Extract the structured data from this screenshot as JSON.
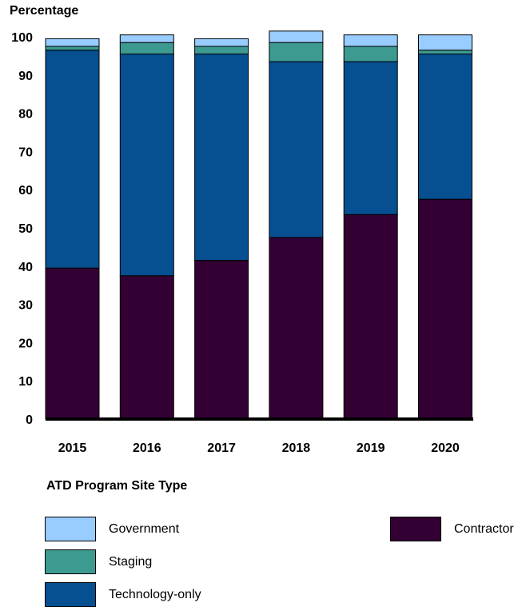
{
  "chart_data": {
    "type": "bar",
    "stacked": true,
    "ylabel": "Percentage",
    "ylim": [
      0,
      100
    ],
    "yticks": [
      0,
      10,
      20,
      30,
      40,
      50,
      60,
      70,
      80,
      90,
      100
    ],
    "categories": [
      "2015",
      "2016",
      "2017",
      "2018",
      "2019",
      "2020"
    ],
    "legend_title": "ATD Program Site Type",
    "legend_placement": "bottom",
    "grid": false,
    "series": [
      {
        "name": "Contractor",
        "color": "#330033",
        "values": [
          39.5,
          37.5,
          41.5,
          47.5,
          53.5,
          57.5
        ]
      },
      {
        "name": "Technology-only",
        "color": "#064f91",
        "values": [
          57,
          58,
          54,
          46,
          40,
          38
        ]
      },
      {
        "name": "Staging",
        "color": "#3d9a91",
        "values": [
          1,
          3,
          2,
          5,
          4,
          1
        ]
      },
      {
        "name": "Government",
        "color": "#99ccff",
        "values": [
          2,
          2,
          2,
          3,
          3,
          4
        ]
      }
    ]
  }
}
